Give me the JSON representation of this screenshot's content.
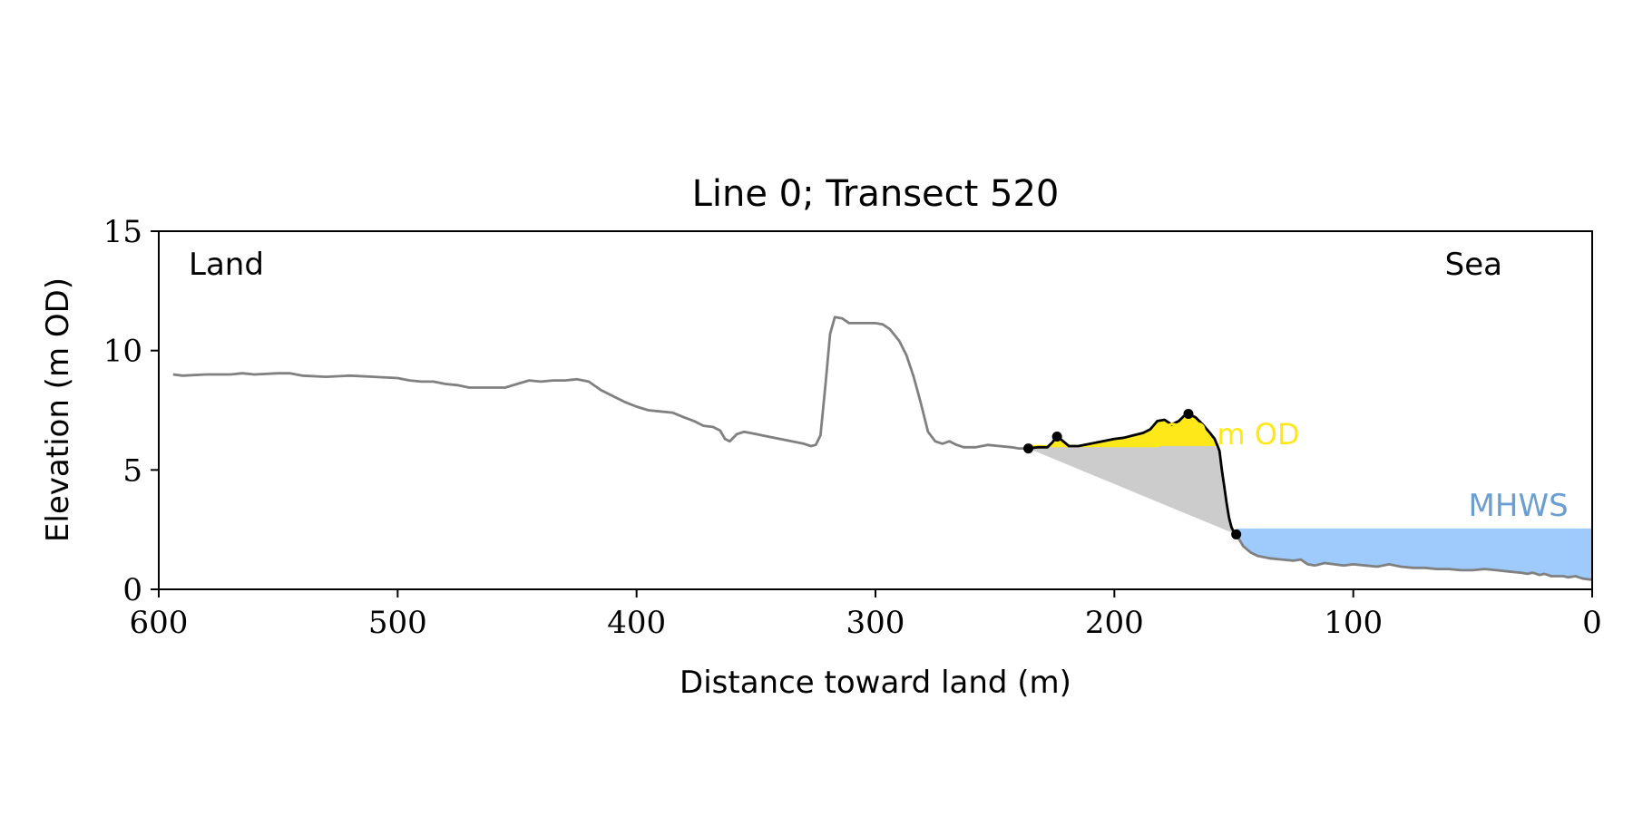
{
  "chart_data": {
    "type": "line",
    "title": "Line 0; Transect 520",
    "xlabel": "Distance toward land (m)",
    "ylabel": "Elevation (m OD)",
    "xlim": [
      600,
      0
    ],
    "ylim": [
      0,
      15
    ],
    "x_ticks": [
      600,
      500,
      400,
      300,
      200,
      100,
      0
    ],
    "y_ticks": [
      0,
      5,
      10,
      15
    ],
    "x_tick_labels": [
      "600",
      "500",
      "400",
      "300",
      "200",
      "100",
      "0"
    ],
    "y_tick_labels": [
      "0",
      "5",
      "10",
      "15"
    ],
    "grid": false,
    "annotations": {
      "left_corner": "Land",
      "right_corner": "Sea",
      "threshold_label": "6.0 m OD",
      "mhws_label": "MHWS"
    },
    "threshold_level": 6.0,
    "mhws_level": 2.55,
    "colors": {
      "profile": "#808080",
      "feature": "#000000",
      "above_threshold_fill": "#FFE81A",
      "threshold_line": "#FFE81A",
      "volume_fill": "#CCCCCC",
      "mhws_fill": "#9ECBFB",
      "mhws_text": "#6A9FD0"
    },
    "series": [
      {
        "role": "full-profile",
        "points": [
          [
            594,
            9.0
          ],
          [
            590,
            8.95
          ],
          [
            580,
            9.0
          ],
          [
            570,
            9.0
          ],
          [
            565,
            9.05
          ],
          [
            560,
            9.0
          ],
          [
            550,
            9.05
          ],
          [
            545,
            9.05
          ],
          [
            540,
            8.95
          ],
          [
            530,
            8.9
          ],
          [
            520,
            8.95
          ],
          [
            510,
            8.9
          ],
          [
            500,
            8.85
          ],
          [
            495,
            8.75
          ],
          [
            490,
            8.7
          ],
          [
            485,
            8.7
          ],
          [
            480,
            8.6
          ],
          [
            475,
            8.55
          ],
          [
            470,
            8.45
          ],
          [
            465,
            8.45
          ],
          [
            460,
            8.45
          ],
          [
            455,
            8.45
          ],
          [
            450,
            8.6
          ],
          [
            445,
            8.75
          ],
          [
            440,
            8.7
          ],
          [
            435,
            8.75
          ],
          [
            430,
            8.75
          ],
          [
            425,
            8.8
          ],
          [
            420,
            8.7
          ],
          [
            415,
            8.35
          ],
          [
            410,
            8.1
          ],
          [
            405,
            7.85
          ],
          [
            400,
            7.65
          ],
          [
            395,
            7.5
          ],
          [
            390,
            7.45
          ],
          [
            385,
            7.4
          ],
          [
            380,
            7.2
          ],
          [
            376,
            7.05
          ],
          [
            372,
            6.85
          ],
          [
            368,
            6.8
          ],
          [
            365,
            6.65
          ],
          [
            363,
            6.3
          ],
          [
            361,
            6.2
          ],
          [
            358,
            6.5
          ],
          [
            355,
            6.6
          ],
          [
            350,
            6.5
          ],
          [
            345,
            6.4
          ],
          [
            340,
            6.3
          ],
          [
            335,
            6.2
          ],
          [
            330,
            6.1
          ],
          [
            327,
            6.0
          ],
          [
            325,
            6.05
          ],
          [
            323,
            6.45
          ],
          [
            321,
            8.5
          ],
          [
            319,
            10.7
          ],
          [
            317,
            11.4
          ],
          [
            314,
            11.35
          ],
          [
            311,
            11.15
          ],
          [
            305,
            11.15
          ],
          [
            300,
            11.15
          ],
          [
            297,
            11.1
          ],
          [
            294,
            10.9
          ],
          [
            290,
            10.4
          ],
          [
            287,
            9.8
          ],
          [
            284,
            8.9
          ],
          [
            281,
            7.8
          ],
          [
            278,
            6.6
          ],
          [
            275,
            6.2
          ],
          [
            272,
            6.1
          ],
          [
            269,
            6.2
          ],
          [
            266,
            6.05
          ],
          [
            263,
            5.95
          ],
          [
            258,
            5.95
          ],
          [
            253,
            6.05
          ],
          [
            248,
            6.0
          ],
          [
            243,
            5.95
          ],
          [
            240,
            5.9
          ],
          [
            236,
            5.9
          ]
        ]
      },
      {
        "role": "analysed-section",
        "points": [
          [
            236,
            5.9
          ],
          [
            232,
            5.95
          ],
          [
            228,
            5.95
          ],
          [
            226,
            6.15
          ],
          [
            224,
            6.4
          ],
          [
            222,
            6.25
          ],
          [
            219,
            6.0
          ],
          [
            215,
            6.0
          ],
          [
            210,
            6.1
          ],
          [
            205,
            6.2
          ],
          [
            200,
            6.3
          ],
          [
            196,
            6.35
          ],
          [
            192,
            6.45
          ],
          [
            188,
            6.55
          ],
          [
            185,
            6.7
          ],
          [
            182,
            7.05
          ],
          [
            179,
            7.1
          ],
          [
            176,
            6.9
          ],
          [
            173,
            7.05
          ],
          [
            171,
            7.25
          ],
          [
            169,
            7.35
          ],
          [
            166,
            7.2
          ],
          [
            163,
            6.9
          ],
          [
            160,
            6.55
          ],
          [
            158,
            6.3
          ],
          [
            156,
            5.8
          ],
          [
            155,
            5.0
          ],
          [
            154,
            4.3
          ],
          [
            153,
            3.6
          ],
          [
            152,
            3.0
          ],
          [
            151,
            2.6
          ],
          [
            150,
            2.4
          ],
          [
            149,
            2.3
          ]
        ]
      },
      {
        "role": "seaward-profile",
        "points": [
          [
            149,
            2.3
          ],
          [
            146,
            1.8
          ],
          [
            143,
            1.55
          ],
          [
            140,
            1.4
          ],
          [
            135,
            1.3
          ],
          [
            130,
            1.25
          ],
          [
            125,
            1.2
          ],
          [
            122,
            1.25
          ],
          [
            119,
            1.05
          ],
          [
            116,
            1.0
          ],
          [
            112,
            1.1
          ],
          [
            108,
            1.05
          ],
          [
            104,
            1.0
          ],
          [
            100,
            1.05
          ],
          [
            95,
            1.0
          ],
          [
            90,
            0.95
          ],
          [
            85,
            1.05
          ],
          [
            80,
            0.95
          ],
          [
            75,
            0.9
          ],
          [
            70,
            0.9
          ],
          [
            65,
            0.85
          ],
          [
            60,
            0.85
          ],
          [
            55,
            0.8
          ],
          [
            50,
            0.8
          ],
          [
            45,
            0.85
          ],
          [
            40,
            0.8
          ],
          [
            35,
            0.75
          ],
          [
            30,
            0.7
          ],
          [
            27,
            0.65
          ],
          [
            25,
            0.7
          ],
          [
            22,
            0.6
          ],
          [
            20,
            0.65
          ],
          [
            17,
            0.55
          ],
          [
            15,
            0.55
          ],
          [
            12,
            0.55
          ],
          [
            10,
            0.5
          ],
          [
            7,
            0.55
          ],
          [
            4,
            0.45
          ],
          [
            0,
            0.4
          ]
        ]
      }
    ],
    "feature_points": [
      [
        236,
        5.9
      ],
      [
        224,
        6.4
      ],
      [
        169,
        7.35
      ],
      [
        149,
        2.3
      ]
    ],
    "threshold_segment_x": [
      236,
      181
    ]
  }
}
